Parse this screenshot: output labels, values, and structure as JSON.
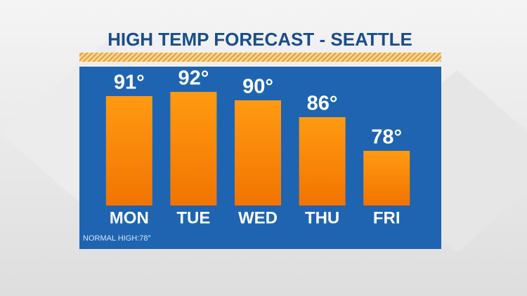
{
  "chart_data": {
    "type": "bar",
    "title": "HIGH TEMP FORECAST - SEATTLE",
    "categories": [
      "MON",
      "TUE",
      "WED",
      "THU",
      "FRI"
    ],
    "values": [
      91,
      92,
      90,
      86,
      78
    ],
    "value_labels": [
      "91°",
      "92°",
      "90°",
      "86°",
      "78°"
    ],
    "color": "#ff8c0a",
    "ylim": [
      65,
      93
    ],
    "annotation": "NORMAL HIGH:78°"
  }
}
